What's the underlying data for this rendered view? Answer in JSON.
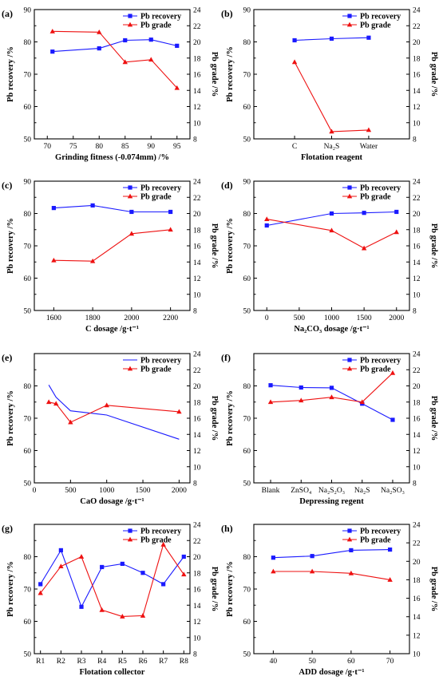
{
  "chart_data": [
    {
      "tag": "(a)",
      "type": "line",
      "xlabel": "Grinding fitness (-0.074mm) /%",
      "ylabel": "Pb recovery /%",
      "ylabel2": "Pb grade /%",
      "x_numeric": true,
      "xlim": [
        67.5,
        97.5
      ],
      "xticks": [
        70,
        75,
        80,
        85,
        90,
        95
      ],
      "ylim": [
        50,
        90
      ],
      "yticks": [
        50,
        60,
        70,
        80,
        90
      ],
      "y2lim": [
        8,
        24
      ],
      "y2ticks": [
        8,
        10,
        12,
        14,
        16,
        18,
        20,
        22,
        24
      ],
      "legend_position": "top-right",
      "series": [
        {
          "name": "Pb recovery",
          "axis": "left",
          "color": "#1a1aff",
          "marker": "square",
          "x": [
            71,
            80,
            85,
            90,
            95
          ],
          "values": [
            77.0,
            78.0,
            80.5,
            80.7,
            78.8
          ]
        },
        {
          "name": "Pb grade",
          "axis": "right",
          "color": "#ee1111",
          "marker": "triangle",
          "x": [
            71,
            80,
            85,
            90,
            95
          ],
          "values": [
            21.3,
            21.2,
            17.5,
            17.8,
            14.3
          ]
        }
      ]
    },
    {
      "tag": "(b)",
      "type": "line",
      "xlabel": "Flotation reagent",
      "ylabel": "Pb recovery /%",
      "ylabel2": "Pb grade /%",
      "x_numeric": false,
      "categories": [
        "C",
        "Na₂S",
        "Water"
      ],
      "cat_pad": 1.1,
      "ylim": [
        50,
        90
      ],
      "yticks": [
        50,
        60,
        70,
        80,
        90
      ],
      "y2lim": [
        8,
        24
      ],
      "y2ticks": [
        8,
        10,
        12,
        14,
        16,
        18,
        20,
        22,
        24
      ],
      "legend_position": "top-right",
      "series": [
        {
          "name": "Pb recovery",
          "axis": "left",
          "color": "#1a1aff",
          "marker": "square",
          "values": [
            80.5,
            81.0,
            81.3
          ]
        },
        {
          "name": "Pb grade",
          "axis": "right",
          "color": "#ee1111",
          "marker": "triangle",
          "values": [
            17.5,
            8.9,
            9.1
          ]
        }
      ]
    },
    {
      "tag": "(c)",
      "type": "line",
      "xlabel": "C  dosage /g·t⁻¹",
      "ylabel": "Pb recovery /%",
      "ylabel2": "Pb grade /%",
      "x_numeric": true,
      "xlim": [
        1500,
        2300
      ],
      "xticks": [
        1600,
        1800,
        2000,
        2200
      ],
      "ylim": [
        50,
        90
      ],
      "yticks": [
        50,
        60,
        70,
        80,
        90
      ],
      "y2lim": [
        8,
        24
      ],
      "y2ticks": [
        8,
        10,
        12,
        14,
        16,
        18,
        20,
        22,
        24
      ],
      "legend_position": "top-right",
      "series": [
        {
          "name": "Pb recovery",
          "axis": "left",
          "color": "#1a1aff",
          "marker": "square",
          "x": [
            1600,
            1800,
            2000,
            2200
          ],
          "values": [
            81.7,
            82.5,
            80.5,
            80.5
          ]
        },
        {
          "name": "Pb grade",
          "axis": "right",
          "color": "#ee1111",
          "marker": "triangle",
          "x": [
            1600,
            1800,
            2000,
            2200
          ],
          "values": [
            14.2,
            14.1,
            17.5,
            18.0
          ]
        }
      ]
    },
    {
      "tag": "(d)",
      "type": "line",
      "xlabel": "Na₂CO₃ dosage /g·t⁻¹",
      "ylabel": "Pb recovery /%",
      "ylabel2": "Pb grade /%",
      "x_numeric": true,
      "xlim": [
        -200,
        2200
      ],
      "xticks": [
        0,
        500,
        1000,
        1500,
        2000
      ],
      "ylim": [
        50,
        90
      ],
      "yticks": [
        50,
        60,
        70,
        80,
        90
      ],
      "y2lim": [
        8,
        24
      ],
      "y2ticks": [
        8,
        10,
        12,
        14,
        16,
        18,
        20,
        22,
        24
      ],
      "legend_position": "top-right",
      "series": [
        {
          "name": "Pb recovery",
          "axis": "left",
          "color": "#1a1aff",
          "marker": "square",
          "x": [
            0,
            1000,
            1500,
            2000
          ],
          "values": [
            76.3,
            80.0,
            80.2,
            80.5
          ]
        },
        {
          "name": "Pb grade",
          "axis": "right",
          "color": "#ee1111",
          "marker": "triangle",
          "x": [
            0,
            1000,
            1500,
            2000
          ],
          "values": [
            19.3,
            17.9,
            15.7,
            17.7
          ]
        }
      ]
    },
    {
      "tag": "(e)",
      "type": "line",
      "xlabel": "CaO dosage /g·t⁻¹",
      "ylabel": "Pb recovery /%",
      "ylabel2": "Pb grade /%",
      "x_numeric": true,
      "xlim": [
        0,
        2150
      ],
      "xticks": [
        0,
        500,
        1000,
        1500,
        2000
      ],
      "ylim": [
        50,
        90
      ],
      "yticks": [
        50,
        60,
        70,
        80
      ],
      "y2lim": [
        8,
        24
      ],
      "y2ticks": [
        8,
        10,
        12,
        14,
        16,
        18,
        20,
        22,
        24
      ],
      "legend_position": "top-right",
      "series": [
        {
          "name": "Pb recovery",
          "axis": "left",
          "color": "#1a1aff",
          "marker": "none",
          "x": [
            200,
            300,
            500,
            1000,
            2000
          ],
          "values": [
            80.3,
            76.5,
            72.3,
            71.0,
            63.5
          ]
        },
        {
          "name": "Pb grade",
          "axis": "right",
          "color": "#ee1111",
          "marker": "triangle",
          "x": [
            200,
            300,
            500,
            1000,
            2000
          ],
          "values": [
            18.0,
            17.8,
            15.5,
            17.6,
            16.8
          ]
        }
      ]
    },
    {
      "tag": "(f)",
      "type": "line",
      "xlabel": "Depressing regent",
      "ylabel": "Pb recovery /%",
      "ylabel2": "Pb grade /%",
      "x_numeric": false,
      "categories": [
        "Blank",
        "ZnSO₄",
        "Na₂S₂O₃",
        "Na₂S",
        "Na₂SO₃"
      ],
      "cat_pad": 0.55,
      "ylim": [
        50,
        90
      ],
      "yticks": [
        50,
        60,
        70,
        80
      ],
      "y2lim": [
        8,
        24
      ],
      "y2ticks": [
        8,
        10,
        12,
        14,
        16,
        18,
        20,
        22,
        24
      ],
      "legend_position": "top-right",
      "series": [
        {
          "name": "Pb recovery",
          "axis": "left",
          "color": "#1a1aff",
          "marker": "square",
          "values": [
            80.2,
            79.5,
            79.4,
            74.5,
            69.5
          ]
        },
        {
          "name": "Pb grade",
          "axis": "right",
          "color": "#ee1111",
          "marker": "triangle",
          "values": [
            18.0,
            18.2,
            18.6,
            18.0,
            21.6
          ]
        }
      ]
    },
    {
      "tag": "(g)",
      "type": "line",
      "xlabel": "Flotation collector",
      "ylabel": "Pb recovery /%",
      "ylabel2": "Pb grade /%",
      "x_numeric": false,
      "categories": [
        "R1",
        "R2",
        "R3",
        "R4",
        "R5",
        "R6",
        "R7",
        "R8"
      ],
      "cat_pad": 0.3,
      "ylim": [
        50,
        90
      ],
      "yticks": [
        50,
        60,
        70,
        80
      ],
      "y2lim": [
        8,
        24
      ],
      "y2ticks": [
        8,
        10,
        12,
        14,
        16,
        18,
        20,
        22,
        24
      ],
      "legend_position": "top-right",
      "series": [
        {
          "name": "Pb recovery",
          "axis": "left",
          "color": "#1a1aff",
          "marker": "square",
          "values": [
            71.5,
            82.0,
            64.5,
            76.8,
            77.8,
            75.0,
            71.5,
            80.0
          ]
        },
        {
          "name": "Pb grade",
          "axis": "right",
          "color": "#ee1111",
          "marker": "triangle",
          "values": [
            15.5,
            18.8,
            20.0,
            13.4,
            12.6,
            12.7,
            21.5,
            17.8
          ]
        }
      ]
    },
    {
      "tag": "(h)",
      "type": "line",
      "xlabel": "ADD dosage /g·t⁻¹",
      "ylabel": "Pb recovery /%",
      "ylabel2": "Pb grade /%",
      "x_numeric": true,
      "xlim": [
        35,
        75
      ],
      "xticks": [
        40,
        50,
        60,
        70
      ],
      "ylim": [
        50,
        90
      ],
      "yticks": [
        50,
        60,
        70,
        80
      ],
      "y2lim": [
        10,
        24
      ],
      "y2ticks": [
        10,
        12,
        14,
        16,
        18,
        20,
        22,
        24
      ],
      "legend_position": "top-right",
      "series": [
        {
          "name": "Pb recovery",
          "axis": "left",
          "color": "#1a1aff",
          "marker": "square",
          "x": [
            40,
            50,
            60,
            70
          ],
          "values": [
            79.7,
            80.2,
            82.0,
            82.2
          ]
        },
        {
          "name": "Pb grade",
          "axis": "right",
          "color": "#ee1111",
          "marker": "triangle",
          "x": [
            40,
            50,
            60,
            70
          ],
          "values": [
            18.9,
            18.9,
            18.7,
            18.0
          ]
        }
      ]
    }
  ]
}
